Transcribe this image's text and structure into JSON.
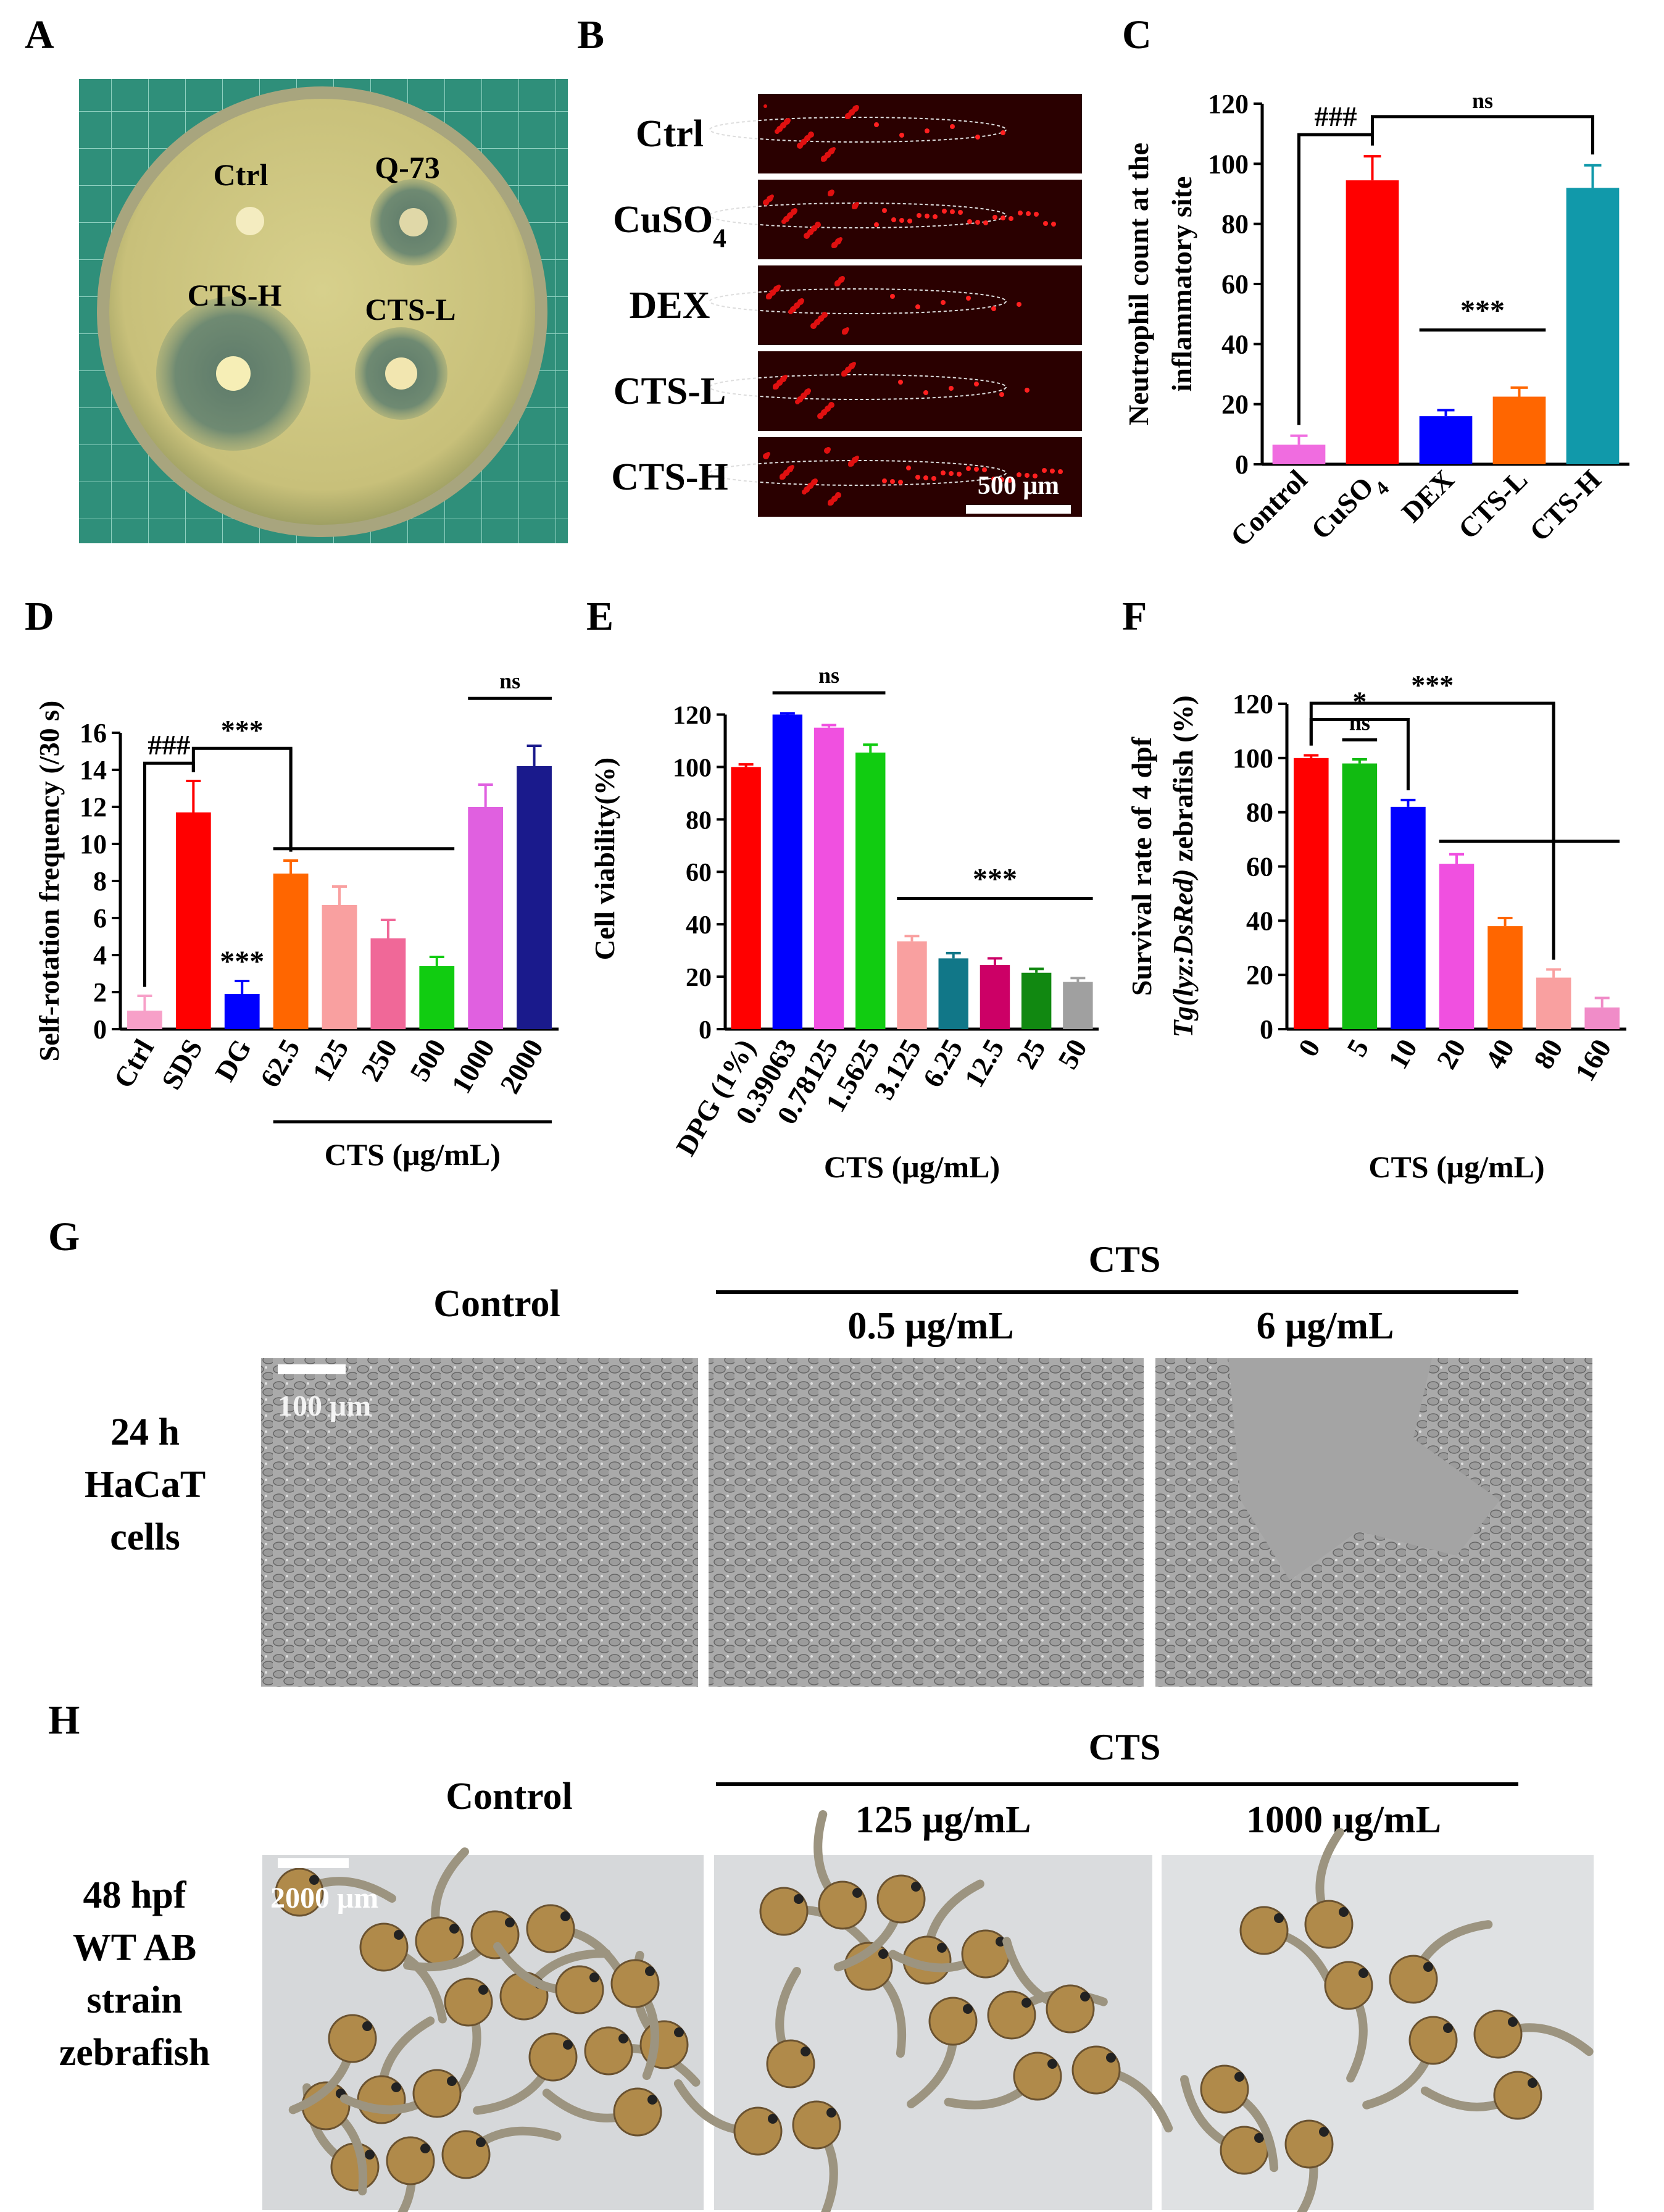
{
  "panels": {
    "A": {
      "label": "A",
      "disc_labels": [
        "Ctrl",
        "Q-73",
        "CTS-H",
        "CTS-L"
      ],
      "colors": {
        "agar": "#c9c37b",
        "mat": "#2f8f7a"
      }
    },
    "B": {
      "label": "B",
      "rows": [
        "Ctrl",
        "CuSO",
        "DEX",
        "CTS-L",
        "CTS-H"
      ],
      "cuso_sub": "4",
      "scale": "500 μm"
    },
    "G": {
      "label": "G",
      "group": "CTS",
      "columns": [
        "Control",
        "0.5 μg/mL",
        "6 μg/mL"
      ],
      "row_label": [
        "24 h",
        "HaCaT",
        "cells"
      ],
      "scale": "100 μm"
    },
    "H": {
      "label": "H",
      "group": "CTS",
      "columns": [
        "Control",
        "125 μg/mL",
        "1000 μg/mL"
      ],
      "row_label": [
        "48 hpf",
        "WT AB",
        "strain",
        "zebrafish"
      ],
      "scale": "2000 μm"
    }
  },
  "chart_data": [
    {
      "id": "C",
      "label": "C",
      "type": "bar",
      "categories": [
        "Control",
        "CuSO",
        "DEX",
        "CTS-L",
        "CTS-H"
      ],
      "category_sub": {
        "1": "4"
      },
      "values": [
        6.5,
        94.5,
        16,
        22.5,
        92
      ],
      "errors": [
        3,
        8,
        2,
        3,
        7.5
      ],
      "colors": [
        "#f06ce0",
        "#ff0000",
        "#0000ff",
        "#ff6600",
        "#1199aa"
      ],
      "ylabel": [
        "Neutrophil count at the",
        "inflammatory site"
      ],
      "ylim": [
        0,
        120
      ],
      "yticks": [
        0,
        20,
        40,
        60,
        80,
        100,
        120
      ],
      "annotations": [
        {
          "text": "###",
          "from": 0,
          "to": 1
        },
        {
          "text": "ns",
          "from": 1,
          "to": 4
        },
        {
          "text": "***",
          "from": 2,
          "to": 3,
          "flat": true
        }
      ]
    },
    {
      "id": "D",
      "label": "D",
      "type": "bar",
      "categories": [
        "Ctrl",
        "SDS",
        "DG",
        "62.5",
        "125",
        "250",
        "500",
        "1000",
        "2000"
      ],
      "values": [
        1.0,
        11.7,
        1.9,
        8.4,
        6.7,
        4.9,
        3.4,
        12.0,
        14.2
      ],
      "errors": [
        0.8,
        1.7,
        0.7,
        0.7,
        1.0,
        1.0,
        0.5,
        1.2,
        1.1
      ],
      "colors": [
        "#f7a0c8",
        "#ff0000",
        "#0000ff",
        "#ff6600",
        "#f9a0a0",
        "#f06898",
        "#11cc11",
        "#e060e0",
        "#1a1a8c"
      ],
      "ylabel": [
        "Self-rotation frequency (/30 s)"
      ],
      "xlabel": "CTS (μg/mL)",
      "xlabel_span": [
        3,
        8
      ],
      "ylim": [
        0,
        16
      ],
      "yticks": [
        0,
        2,
        4,
        6,
        8,
        10,
        12,
        14,
        16
      ],
      "bar_label": {
        "index": 2,
        "text": "***"
      },
      "annotations": [
        {
          "text": "###",
          "from": 0,
          "to": 1
        },
        {
          "text": "***",
          "from": 1,
          "to": 3,
          "group": [
            3,
            6
          ]
        },
        {
          "text": "ns",
          "from": 7,
          "to": 8,
          "flat": true
        }
      ]
    },
    {
      "id": "E",
      "label": "E",
      "type": "bar",
      "categories": [
        "DPG (1%)",
        "0.39063",
        "0.78125",
        "1.5625",
        "3.125",
        "6.25",
        "12.5",
        "25",
        "50"
      ],
      "values": [
        100,
        120,
        115,
        105.5,
        33.5,
        27,
        24.5,
        21.5,
        18
      ],
      "errors": [
        1,
        0.5,
        1,
        3,
        2,
        2,
        2.5,
        1.5,
        1.5
      ],
      "colors": [
        "#ff0000",
        "#0000ff",
        "#f050e0",
        "#11cc11",
        "#f9a0a0",
        "#117788",
        "#cc0066",
        "#118811",
        "#a0a0a0"
      ],
      "ylabel": [
        "Cell viability(%)"
      ],
      "xlabel": "CTS (μg/mL)",
      "ylim": [
        0,
        130
      ],
      "yticks": [
        0,
        20,
        40,
        60,
        80,
        100,
        120
      ],
      "annotations": [
        {
          "text": "ns",
          "from": 1,
          "to": 3,
          "flat": true
        },
        {
          "text": "***",
          "from": 4,
          "to": 8,
          "flat": true
        }
      ]
    },
    {
      "id": "F",
      "label": "F",
      "type": "bar",
      "categories": [
        "0",
        "5",
        "10",
        "20",
        "40",
        "80",
        "160"
      ],
      "values": [
        100,
        98,
        82,
        61,
        38,
        19,
        8
      ],
      "errors": [
        1,
        1.5,
        2.5,
        3.5,
        3,
        3,
        3.5
      ],
      "colors": [
        "#ff0000",
        "#11bb11",
        "#0000ff",
        "#f050e0",
        "#ff6600",
        "#f9a0a0",
        "#f08cc8"
      ],
      "ylabel": [
        "Survival rate of 4 dpf",
        "Tg(lyz:DsRed) zebrafish (%)"
      ],
      "xlabel": "CTS (μg/mL)",
      "ylim": [
        0,
        120
      ],
      "yticks": [
        0,
        20,
        40,
        60,
        80,
        100,
        120
      ],
      "annotations": [
        {
          "text": "ns",
          "from": 1,
          "to": 1,
          "flat": true
        },
        {
          "text": "*",
          "from": 0,
          "to": 2
        },
        {
          "text": "***",
          "from": 0,
          "to": 5,
          "group": [
            3,
            6
          ]
        }
      ]
    }
  ]
}
